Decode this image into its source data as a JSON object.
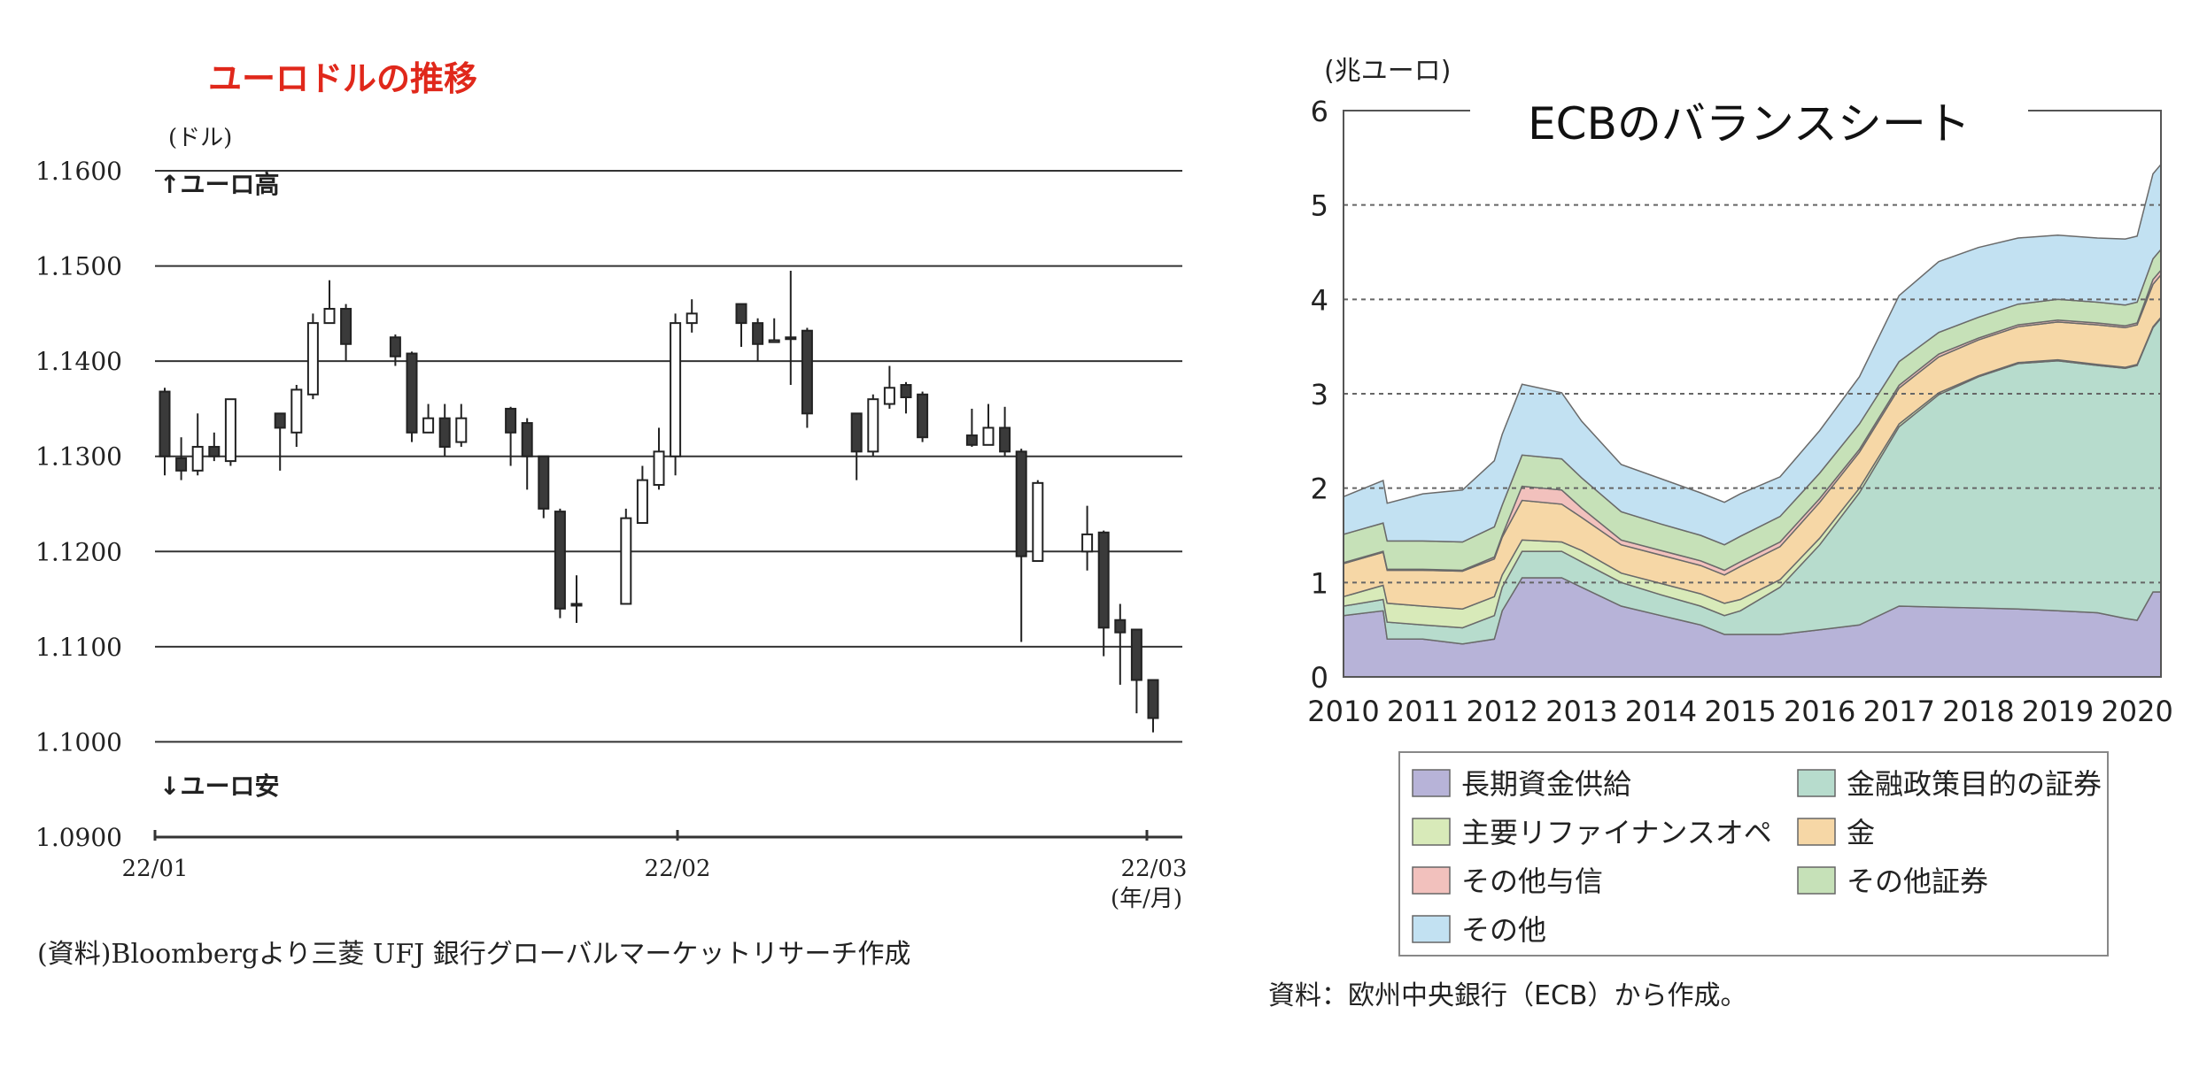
{
  "chart_data": [
    {
      "type": "candlestick",
      "title": "ユーロドルの推移",
      "ylabel": "(ドル)",
      "xlabel": "(年/月)",
      "ylim": [
        1.09,
        1.16
      ],
      "yticks": [
        "1.1600",
        "1.1500",
        "1.1400",
        "1.1300",
        "1.1200",
        "1.1100",
        "1.1000",
        "1.0900"
      ],
      "xticks": [
        "22/01",
        "22/02",
        "22/03"
      ],
      "annotation_up": "↑ユーロ高",
      "annotation_down": "↓ユーロ安",
      "source": "(資料)Bloombergより三菱 UFJ 銀行グローバルマーケットリサーチ作成",
      "candles": [
        {
          "i": 0,
          "o": 1.1368,
          "h": 1.1372,
          "l": 1.128,
          "c": 1.13
        },
        {
          "i": 1,
          "o": 1.1298,
          "h": 1.132,
          "l": 1.1275,
          "c": 1.1285
        },
        {
          "i": 2,
          "o": 1.1285,
          "h": 1.1345,
          "l": 1.128,
          "c": 1.131
        },
        {
          "i": 3,
          "o": 1.131,
          "h": 1.1325,
          "l": 1.1295,
          "c": 1.13
        },
        {
          "i": 4,
          "o": 1.1295,
          "h": 1.136,
          "l": 1.129,
          "c": 1.136
        },
        {
          "i": 7,
          "o": 1.1345,
          "h": 1.1345,
          "l": 1.1285,
          "c": 1.133
        },
        {
          "i": 8,
          "o": 1.1325,
          "h": 1.1375,
          "l": 1.131,
          "c": 1.137
        },
        {
          "i": 9,
          "o": 1.1365,
          "h": 1.145,
          "l": 1.136,
          "c": 1.144
        },
        {
          "i": 10,
          "o": 1.144,
          "h": 1.1485,
          "l": 1.144,
          "c": 1.1455
        },
        {
          "i": 11,
          "o": 1.1455,
          "h": 1.146,
          "l": 1.14,
          "c": 1.1418
        },
        {
          "i": 14,
          "o": 1.1425,
          "h": 1.1428,
          "l": 1.1395,
          "c": 1.1405
        },
        {
          "i": 15,
          "o": 1.1408,
          "h": 1.141,
          "l": 1.1315,
          "c": 1.1325
        },
        {
          "i": 16,
          "o": 1.1325,
          "h": 1.1355,
          "l": 1.1325,
          "c": 1.134
        },
        {
          "i": 17,
          "o": 1.134,
          "h": 1.1355,
          "l": 1.13,
          "c": 1.131
        },
        {
          "i": 18,
          "o": 1.1315,
          "h": 1.1355,
          "l": 1.131,
          "c": 1.134
        },
        {
          "i": 21,
          "o": 1.135,
          "h": 1.1352,
          "l": 1.129,
          "c": 1.1325
        },
        {
          "i": 22,
          "o": 1.1335,
          "h": 1.134,
          "l": 1.1265,
          "c": 1.13
        },
        {
          "i": 23,
          "o": 1.13,
          "h": 1.13,
          "l": 1.1235,
          "c": 1.1245
        },
        {
          "i": 24,
          "o": 1.1242,
          "h": 1.1245,
          "l": 1.113,
          "c": 1.114
        },
        {
          "i": 25,
          "o": 1.1145,
          "h": 1.1175,
          "l": 1.1125,
          "c": 1.1145
        },
        {
          "i": 28,
          "o": 1.1145,
          "h": 1.1245,
          "l": 1.1145,
          "c": 1.1235
        },
        {
          "i": 29,
          "o": 1.123,
          "h": 1.129,
          "l": 1.123,
          "c": 1.1275
        },
        {
          "i": 30,
          "o": 1.127,
          "h": 1.133,
          "l": 1.1265,
          "c": 1.1305
        },
        {
          "i": 31,
          "o": 1.13,
          "h": 1.145,
          "l": 1.128,
          "c": 1.144
        },
        {
          "i": 32,
          "o": 1.144,
          "h": 1.1465,
          "l": 1.143,
          "c": 1.145
        },
        {
          "i": 35,
          "o": 1.146,
          "h": 1.146,
          "l": 1.1415,
          "c": 1.144
        },
        {
          "i": 36,
          "o": 1.144,
          "h": 1.1445,
          "l": 1.14,
          "c": 1.1418
        },
        {
          "i": 37,
          "o": 1.142,
          "h": 1.1445,
          "l": 1.142,
          "c": 1.1422
        },
        {
          "i": 38,
          "o": 1.1425,
          "h": 1.1495,
          "l": 1.1375,
          "c": 1.1425
        },
        {
          "i": 39,
          "o": 1.1432,
          "h": 1.1435,
          "l": 1.133,
          "c": 1.1345
        },
        {
          "i": 42,
          "o": 1.1345,
          "h": 1.1345,
          "l": 1.1275,
          "c": 1.1305
        },
        {
          "i": 43,
          "o": 1.1305,
          "h": 1.1365,
          "l": 1.13,
          "c": 1.136
        },
        {
          "i": 44,
          "o": 1.1355,
          "h": 1.1395,
          "l": 1.135,
          "c": 1.1372
        },
        {
          "i": 45,
          "o": 1.1375,
          "h": 1.1378,
          "l": 1.1345,
          "c": 1.1362
        },
        {
          "i": 46,
          "o": 1.1365,
          "h": 1.1368,
          "l": 1.1315,
          "c": 1.132
        },
        {
          "i": 49,
          "o": 1.1322,
          "h": 1.135,
          "l": 1.131,
          "c": 1.1312
        },
        {
          "i": 50,
          "o": 1.1312,
          "h": 1.1355,
          "l": 1.1312,
          "c": 1.133
        },
        {
          "i": 51,
          "o": 1.133,
          "h": 1.1352,
          "l": 1.13,
          "c": 1.1305
        },
        {
          "i": 52,
          "o": 1.1305,
          "h": 1.1308,
          "l": 1.1105,
          "c": 1.1195
        },
        {
          "i": 53,
          "o": 1.119,
          "h": 1.1275,
          "l": 1.119,
          "c": 1.1272
        },
        {
          "i": 56,
          "o": 1.12,
          "h": 1.1248,
          "l": 1.118,
          "c": 1.1218
        },
        {
          "i": 57,
          "o": 1.122,
          "h": 1.1222,
          "l": 1.109,
          "c": 1.112
        },
        {
          "i": 58,
          "o": 1.1128,
          "h": 1.1145,
          "l": 1.106,
          "c": 1.1115
        },
        {
          "i": 59,
          "o": 1.1118,
          "h": 1.1118,
          "l": 1.103,
          "c": 1.1065
        },
        {
          "i": 60,
          "o": 1.1065,
          "h": 1.1065,
          "l": 1.101,
          "c": 1.1025
        }
      ]
    },
    {
      "type": "area",
      "title": "ECBのバランスシート",
      "ylabel": "(兆ユーロ)",
      "ylim": [
        0,
        6
      ],
      "yticks": [
        "0",
        "1",
        "2",
        "3",
        "4",
        "5",
        "6"
      ],
      "xlim": [
        2010,
        2020.3
      ],
      "xticks": [
        "2010",
        "2011",
        "2012",
        "2013",
        "2014",
        "2015",
        "2016",
        "2017",
        "2018",
        "2019",
        "2020"
      ],
      "source": "資料：欧州中央銀行（ECB）から作成。",
      "x": [
        2010.0,
        2010.5,
        2010.55,
        2011.0,
        2011.5,
        2011.9,
        2012.0,
        2012.25,
        2012.75,
        2013.0,
        2013.5,
        2014.0,
        2014.5,
        2014.8,
        2015.0,
        2015.5,
        2016.0,
        2016.5,
        2017.0,
        2017.5,
        2018.0,
        2018.5,
        2019.0,
        2019.5,
        2019.85,
        2020.0,
        2020.2,
        2020.3
      ],
      "series": [
        {
          "name": "長期資金供給",
          "color": "#b7b3d8",
          "values": [
            0.65,
            0.7,
            0.4,
            0.4,
            0.35,
            0.4,
            0.7,
            1.05,
            1.05,
            0.95,
            0.75,
            0.65,
            0.55,
            0.45,
            0.45,
            0.45,
            0.5,
            0.55,
            0.75,
            0.74,
            0.73,
            0.72,
            0.7,
            0.68,
            0.62,
            0.6,
            0.9,
            0.9
          ]
        },
        {
          "name": "金融政策目的の証券",
          "color": "#b7dccd",
          "values": [
            0.1,
            0.12,
            0.18,
            0.15,
            0.17,
            0.25,
            0.25,
            0.28,
            0.28,
            0.27,
            0.25,
            0.22,
            0.2,
            0.2,
            0.25,
            0.5,
            0.9,
            1.4,
            1.9,
            2.25,
            2.45,
            2.6,
            2.65,
            2.62,
            2.65,
            2.7,
            2.8,
            2.9
          ]
        },
        {
          "name": "主要リファイナンスオペ",
          "color": "#d8eab9",
          "values": [
            0.1,
            0.15,
            0.2,
            0.2,
            0.2,
            0.2,
            0.13,
            0.12,
            0.1,
            0.12,
            0.1,
            0.12,
            0.13,
            0.13,
            0.12,
            0.08,
            0.07,
            0.05,
            0.03,
            0.02,
            0.01,
            0.01,
            0.01,
            0.01,
            0.01,
            0.01,
            0.01,
            0.01
          ]
        },
        {
          "name": "金",
          "color": "#f6d7a6",
          "values": [
            0.35,
            0.35,
            0.35,
            0.38,
            0.4,
            0.4,
            0.4,
            0.42,
            0.4,
            0.35,
            0.3,
            0.3,
            0.3,
            0.3,
            0.35,
            0.35,
            0.38,
            0.38,
            0.38,
            0.38,
            0.38,
            0.38,
            0.4,
            0.42,
            0.42,
            0.42,
            0.45,
            0.45
          ]
        },
        {
          "name": "その他与信",
          "color": "#f2c1bd",
          "values": [
            0.01,
            0.01,
            0.01,
            0.01,
            0.01,
            0.02,
            0.02,
            0.15,
            0.15,
            0.1,
            0.05,
            0.05,
            0.05,
            0.05,
            0.05,
            0.05,
            0.04,
            0.03,
            0.03,
            0.03,
            0.02,
            0.02,
            0.02,
            0.02,
            0.02,
            0.02,
            0.05,
            0.05
          ]
        },
        {
          "name": "その他証券",
          "color": "#c6e1b8",
          "values": [
            0.3,
            0.3,
            0.3,
            0.3,
            0.3,
            0.32,
            0.32,
            0.33,
            0.33,
            0.32,
            0.3,
            0.28,
            0.27,
            0.27,
            0.27,
            0.27,
            0.27,
            0.27,
            0.25,
            0.23,
            0.22,
            0.22,
            0.22,
            0.22,
            0.22,
            0.22,
            0.22,
            0.22
          ]
        },
        {
          "name": "その他",
          "color": "#c2e1f2",
          "values": [
            0.4,
            0.45,
            0.4,
            0.5,
            0.55,
            0.7,
            0.75,
            0.75,
            0.7,
            0.6,
            0.5,
            0.48,
            0.45,
            0.45,
            0.45,
            0.42,
            0.45,
            0.5,
            0.7,
            0.75,
            0.74,
            0.7,
            0.68,
            0.68,
            0.7,
            0.7,
            0.9,
            0.9
          ]
        }
      ],
      "legend": {
        "left": [
          "長期資金供給",
          "主要リファイナンスオペ",
          "その他与信",
          "その他"
        ],
        "right": [
          "金融政策目的の証券",
          "金",
          "その他証券"
        ]
      }
    }
  ],
  "colors": {
    "title_red": "#e0281b",
    "candle_fill": "#3a3a3a",
    "grid": "#333333",
    "axis_text": "#222222"
  }
}
